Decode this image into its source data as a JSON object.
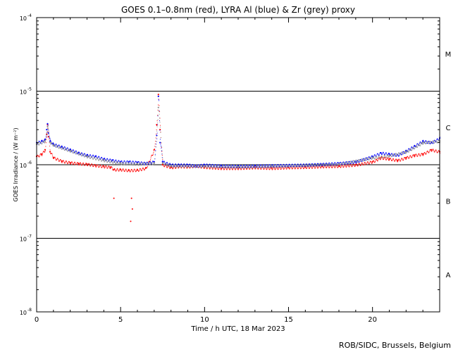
{
  "footer": {
    "credit": "ROB/SIDC, Brussels, Belgium"
  },
  "chart_data": {
    "type": "scatter",
    "title": "GOES 0.1–0.8nm (red), LYRA Al (blue) & Zr (grey) proxy",
    "xlabel": "Time / h UTC, 18 Mar 2023",
    "ylabel": "GOES Irradiance / (W m⁻²)",
    "xlim": [
      0,
      24
    ],
    "ylim": [
      1e-08,
      0.0001
    ],
    "yscale": "log",
    "x_ticks": [
      0,
      5,
      10,
      15,
      20
    ],
    "y_ticks": [
      {
        "value": 1e-08,
        "mant": "10",
        "exp": "-8"
      },
      {
        "value": 1e-07,
        "mant": "10",
        "exp": "-7"
      },
      {
        "value": 1e-06,
        "mant": "10",
        "exp": "-6"
      },
      {
        "value": 1e-05,
        "mant": "10",
        "exp": "-5"
      },
      {
        "value": 0.0001,
        "mant": "10",
        "exp": "-4"
      }
    ],
    "class_lines": [
      1e-07,
      1e-06,
      1e-05
    ],
    "flare_classes": [
      {
        "label": "A",
        "value": 3.2e-08
      },
      {
        "label": "B",
        "value": 3.2e-07
      },
      {
        "label": "C",
        "value": 3.2e-06
      },
      {
        "label": "M",
        "value": 3.2e-05
      }
    ],
    "grid": false,
    "series": [
      {
        "name": "GOES 0.1–0.8nm",
        "color": "#ff0000",
        "x": [
          0,
          0.3,
          0.5,
          0.6,
          0.65,
          0.7,
          0.8,
          1.0,
          1.5,
          2.0,
          2.5,
          3.0,
          3.5,
          4.0,
          4.4,
          4.6,
          5.0,
          5.5,
          6.0,
          6.5,
          7.0,
          7.15,
          7.25,
          7.35,
          7.5,
          8.0,
          8.5,
          9.0,
          9.5,
          10.0,
          11.0,
          12.0,
          13.0,
          14.0,
          15.0,
          16.0,
          17.0,
          18.0,
          19.0,
          20.0,
          20.5,
          21.0,
          21.5,
          22.0,
          22.5,
          23.0,
          23.5,
          24.0
        ],
        "values": [
          1.3e-06,
          1.4e-06,
          1.6e-06,
          2.6e-06,
          3.5e-06,
          2.4e-06,
          1.5e-06,
          1.25e-06,
          1.12e-06,
          1.07e-06,
          1.04e-06,
          1.02e-06,
          9.8e-07,
          9.5e-07,
          9.3e-07,
          8.6e-07,
          8.6e-07,
          8.4e-07,
          8.5e-07,
          9e-07,
          1.6e-06,
          3.5e-06,
          9e-06,
          3e-06,
          1e-06,
          9.2e-07,
          9.5e-07,
          9.4e-07,
          9.6e-07,
          9.3e-07,
          9e-07,
          9e-07,
          9.2e-07,
          9e-07,
          9.2e-07,
          9.3e-07,
          9.5e-07,
          9.6e-07,
          1e-06,
          1.1e-06,
          1.25e-06,
          1.2e-06,
          1.15e-06,
          1.25e-06,
          1.35e-06,
          1.4e-06,
          1.6e-06,
          1.5e-06
        ],
        "outliers": {
          "x": [
            4.6,
            5.6,
            5.65,
            5.7
          ],
          "values": [
            3.5e-07,
            1.7e-07,
            3.5e-07,
            2.5e-07
          ]
        }
      },
      {
        "name": "LYRA Al proxy",
        "color": "#0000ff",
        "x": [
          0,
          0.3,
          0.5,
          0.6,
          0.65,
          0.7,
          0.8,
          1.0,
          1.5,
          2.0,
          2.5,
          3.0,
          3.5,
          4.0,
          4.5,
          5.0,
          5.5,
          6.0,
          6.5,
          7.0,
          7.15,
          7.25,
          7.35,
          7.5,
          8.0,
          8.5,
          9.0,
          9.5,
          10.0,
          11.0,
          12.0,
          13.0,
          14.0,
          15.0,
          16.0,
          17.0,
          18.0,
          19.0,
          20.0,
          20.5,
          21.0,
          21.5,
          22.0,
          22.5,
          23.0,
          23.5,
          24.0
        ],
        "values": [
          2e-06,
          2.1e-06,
          2.2e-06,
          3e-06,
          3.6e-06,
          2.7e-06,
          2.1e-06,
          1.9e-06,
          1.75e-06,
          1.6e-06,
          1.45e-06,
          1.35e-06,
          1.3e-06,
          1.2e-06,
          1.15e-06,
          1.1e-06,
          1.1e-06,
          1.08e-06,
          1.05e-06,
          1.1e-06,
          2.5e-06,
          8.5e-06,
          2e-06,
          1.1e-06,
          1e-06,
          1e-06,
          1e-06,
          9.7e-07,
          1e-06,
          9.7e-07,
          9.6e-07,
          9.7e-07,
          9.8e-07,
          9.9e-07,
          1e-06,
          1.02e-06,
          1.05e-06,
          1.1e-06,
          1.3e-06,
          1.45e-06,
          1.4e-06,
          1.35e-06,
          1.55e-06,
          1.8e-06,
          2.1e-06,
          2e-06,
          2.3e-06
        ]
      },
      {
        "name": "LYRA Zr proxy",
        "color": "#8c8c8c",
        "x": [
          0,
          0.5,
          0.65,
          0.8,
          1.0,
          2.0,
          3.0,
          4.0,
          5.0,
          6.0,
          7.0,
          7.25,
          7.5,
          8.0,
          10.0,
          12.0,
          14.0,
          16.0,
          18.0,
          20.0,
          21.0,
          22.0,
          23.0,
          24.0
        ],
        "values": [
          1.9e-06,
          2.1e-06,
          3.3e-06,
          2e-06,
          1.85e-06,
          1.55e-06,
          1.3e-06,
          1.15e-06,
          1.05e-06,
          1.03e-06,
          1.05e-06,
          6e-06,
          1.05e-06,
          9.7e-07,
          9.6e-07,
          9.4e-07,
          9.6e-07,
          9.9e-07,
          1.02e-06,
          1.25e-06,
          1.33e-06,
          1.5e-06,
          2e-06,
          2.1e-06
        ]
      }
    ]
  }
}
